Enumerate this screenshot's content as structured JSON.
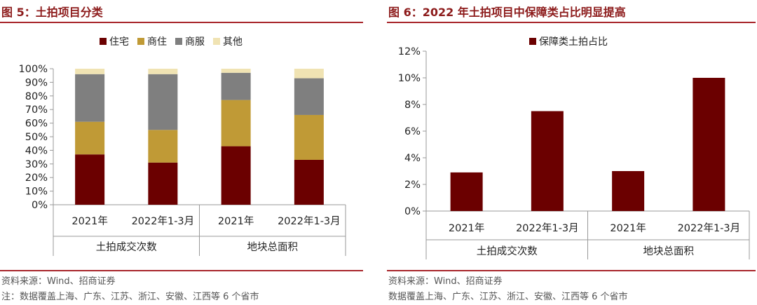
{
  "left": {
    "title": "图 5：土拍项目分类",
    "source": "资料来源：Wind、招商证券",
    "note": "注：数据覆盖上海、广东、江苏、浙江、安徽、江西等 6 个省市"
  },
  "right": {
    "title": "图 6：2022 年土拍项目中保障类占比明显提高",
    "source": "资料来源：Wind、招商证券",
    "note": "数据覆盖上海、广东、江苏、浙江、安徽、江西等 6 个省市"
  },
  "chart_data": [
    {
      "type": "bar",
      "stacked": true,
      "categories": [
        "2021年",
        "2022年1-3月",
        "2021年",
        "2022年1-3月"
      ],
      "groups": [
        {
          "label": "土拍成交次数",
          "categories": [
            0,
            1
          ]
        },
        {
          "label": "地块总面积",
          "categories": [
            2,
            3
          ]
        }
      ],
      "series": [
        {
          "name": "住宅",
          "color": "#6b0000",
          "values": [
            37,
            31,
            43,
            33
          ]
        },
        {
          "name": "商住",
          "color": "#c09a36",
          "values": [
            24,
            24,
            34,
            33
          ]
        },
        {
          "name": "商服",
          "color": "#7f7f7f",
          "values": [
            35,
            41,
            20,
            27
          ]
        },
        {
          "name": "其他",
          "color": "#f0e3b3",
          "values": [
            4,
            4,
            3,
            7
          ]
        }
      ],
      "yticks": [
        "0%",
        "10%",
        "20%",
        "30%",
        "40%",
        "50%",
        "60%",
        "70%",
        "80%",
        "90%",
        "100%"
      ],
      "ylim": [
        0,
        100
      ],
      "legend": "top"
    },
    {
      "type": "bar",
      "categories": [
        "2021年",
        "2022年1-3月",
        "2021年",
        "2022年1-3月"
      ],
      "groups": [
        {
          "label": "土拍成交次数",
          "categories": [
            0,
            1
          ]
        },
        {
          "label": "地块总面积",
          "categories": [
            2,
            3
          ]
        }
      ],
      "series": [
        {
          "name": "保障类土拍占比",
          "color": "#6b0000",
          "values": [
            2.9,
            7.5,
            3.0,
            10.0
          ]
        }
      ],
      "yticks": [
        "0%",
        "2%",
        "4%",
        "6%",
        "8%",
        "10%",
        "12%"
      ],
      "ylim": [
        0,
        12
      ],
      "legend": "top"
    }
  ]
}
